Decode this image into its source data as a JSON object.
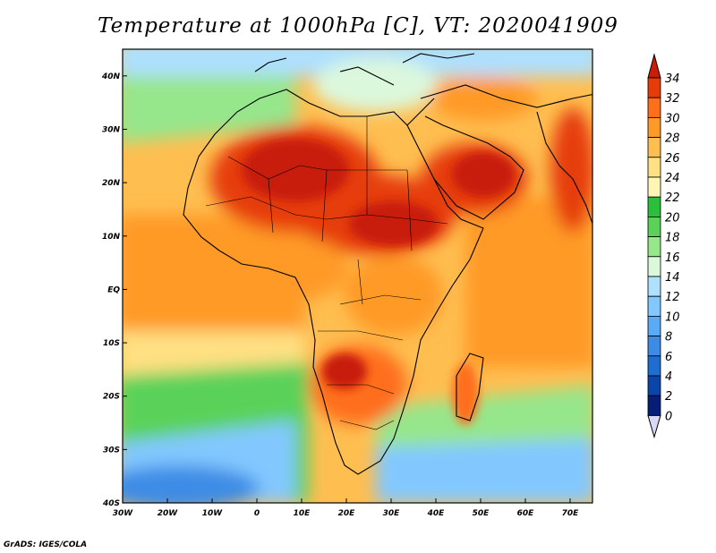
{
  "title": "Temperature at 1000hPa [C], VT: 2020041909",
  "credit": "GrADS: IGES/COLA",
  "map": {
    "lon_range": [
      -30,
      75
    ],
    "lat_range": [
      -40,
      45
    ],
    "lat_ticks": [
      "40N",
      "30N",
      "20N",
      "10N",
      "EQ",
      "10S",
      "20S",
      "30S",
      "40S"
    ],
    "lat_values": [
      40,
      30,
      20,
      10,
      0,
      -10,
      -20,
      -30,
      -40
    ],
    "lon_ticks": [
      "30W",
      "20W",
      "10W",
      "0",
      "10E",
      "20E",
      "30E",
      "40E",
      "50E",
      "60E",
      "70E"
    ],
    "lon_values": [
      -30,
      -20,
      -10,
      0,
      10,
      20,
      30,
      40,
      50,
      60,
      70
    ]
  },
  "colorbar": {
    "labels": [
      "34",
      "32",
      "30",
      "28",
      "26",
      "24",
      "22",
      "20",
      "18",
      "16",
      "14",
      "12",
      "10",
      "8",
      "6",
      "4",
      "2",
      "0"
    ],
    "colors": [
      "#c81e08",
      "#e63c0a",
      "#ff6e1a",
      "#ff9a28",
      "#ffbe50",
      "#ffe082",
      "#fff5b4",
      "#2cbf3c",
      "#5ad25a",
      "#96e68c",
      "#dcf8dc",
      "#aee0ff",
      "#82c8ff",
      "#5aaaf5",
      "#3c8ce6",
      "#1e6ed2",
      "#0a46aa",
      "#061e78"
    ]
  },
  "chart_data": {
    "type": "heatmap",
    "title": "Temperature at 1000hPa [C], VT: 2020041909",
    "xlabel": "",
    "ylabel": "",
    "xlim": [
      -30,
      75
    ],
    "ylim": [
      -40,
      45
    ],
    "colorbar_levels": [
      0,
      2,
      4,
      6,
      8,
      10,
      12,
      14,
      16,
      18,
      20,
      22,
      24,
      26,
      28,
      30,
      32,
      34
    ]
  }
}
